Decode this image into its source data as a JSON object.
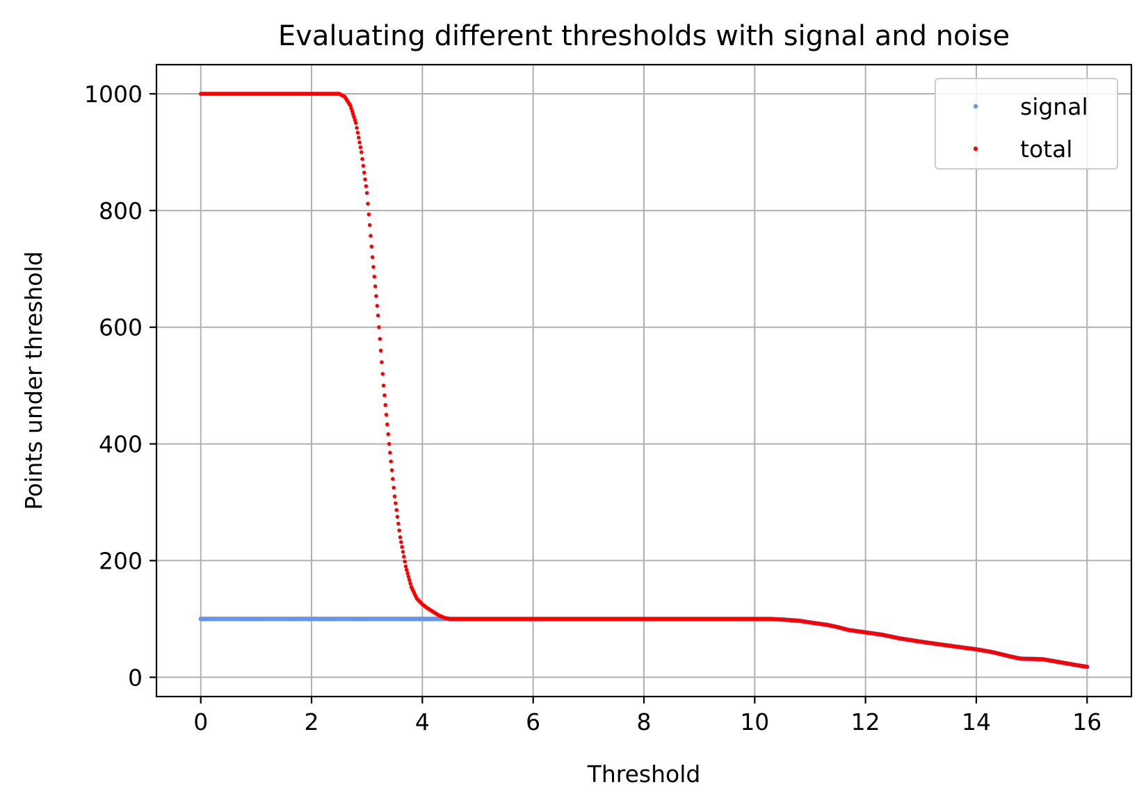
{
  "chart_data": {
    "type": "scatter",
    "title": "Evaluating different thresholds with signal and noise",
    "xlabel": "Threshold",
    "ylabel": "Points under threshold",
    "xlim": [
      -0.8,
      16.8
    ],
    "ylim": [
      -33,
      1050
    ],
    "xticks": [
      0,
      2,
      4,
      6,
      8,
      10,
      12,
      14,
      16
    ],
    "yticks": [
      0,
      200,
      400,
      600,
      800,
      1000
    ],
    "grid": true,
    "legend_position": "top-right",
    "series": [
      {
        "name": "signal",
        "color": "#6495ed",
        "points": [
          [
            0,
            100
          ],
          [
            10.3,
            100
          ],
          [
            10.5,
            99
          ],
          [
            10.8,
            97
          ],
          [
            11.0,
            94
          ],
          [
            11.3,
            90
          ],
          [
            11.5,
            86
          ],
          [
            11.7,
            81
          ],
          [
            12.0,
            77
          ],
          [
            12.3,
            73
          ],
          [
            12.6,
            67
          ],
          [
            13.0,
            61
          ],
          [
            13.3,
            57
          ],
          [
            13.6,
            53
          ],
          [
            14.0,
            48
          ],
          [
            14.3,
            43
          ],
          [
            14.6,
            36
          ],
          [
            14.8,
            32
          ],
          [
            15.2,
            31
          ],
          [
            15.5,
            26
          ],
          [
            15.8,
            21
          ],
          [
            16.0,
            18
          ]
        ]
      },
      {
        "name": "total",
        "color": "#ff0000",
        "points": [
          [
            0,
            1000
          ],
          [
            2.5,
            1000
          ],
          [
            2.6,
            995
          ],
          [
            2.7,
            980
          ],
          [
            2.8,
            950
          ],
          [
            2.9,
            900
          ],
          [
            3.0,
            830
          ],
          [
            3.1,
            720
          ],
          [
            3.2,
            620
          ],
          [
            3.3,
            500
          ],
          [
            3.4,
            400
          ],
          [
            3.5,
            310
          ],
          [
            3.6,
            240
          ],
          [
            3.7,
            190
          ],
          [
            3.8,
            155
          ],
          [
            3.9,
            135
          ],
          [
            4.0,
            125
          ],
          [
            4.1,
            118
          ],
          [
            4.2,
            112
          ],
          [
            4.3,
            106
          ],
          [
            4.4,
            102
          ],
          [
            4.5,
            100
          ],
          [
            10.3,
            100
          ],
          [
            10.5,
            99
          ],
          [
            10.8,
            97
          ],
          [
            11.0,
            94
          ],
          [
            11.3,
            90
          ],
          [
            11.5,
            86
          ],
          [
            11.7,
            81
          ],
          [
            12.0,
            77
          ],
          [
            12.3,
            73
          ],
          [
            12.6,
            67
          ],
          [
            13.0,
            61
          ],
          [
            13.3,
            57
          ],
          [
            13.6,
            53
          ],
          [
            14.0,
            48
          ],
          [
            14.3,
            43
          ],
          [
            14.6,
            36
          ],
          [
            14.8,
            32
          ],
          [
            15.2,
            31
          ],
          [
            15.5,
            26
          ],
          [
            15.8,
            21
          ],
          [
            16.0,
            18
          ]
        ]
      }
    ]
  }
}
